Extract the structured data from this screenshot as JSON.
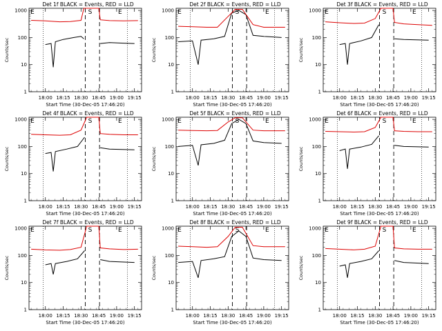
{
  "figure": {
    "ylabel": "Counts/sec",
    "xlabel": "Start Time (30-Dec-05 17:46:20)",
    "x_tick_labels": [
      "18:00",
      "18:15",
      "18:30",
      "18:45",
      "19:00",
      "19:15"
    ],
    "y_tick_labels": [
      "1",
      "10",
      "100",
      "1000"
    ],
    "marker_S": "S",
    "marker_E": "E",
    "colors": {
      "events": "#000000",
      "lld": "#dd0000",
      "axes": "#000000",
      "background": "#ffffff"
    }
  },
  "chart_data": [
    {
      "type": "line",
      "title": "Det 1f BLACK = Events, RED = LLD",
      "xlabel": "Start Time (30-Dec-05 17:46:20)",
      "ylabel": "Counts/sec",
      "y_scale": "log",
      "ylim": [
        1,
        1200
      ],
      "x_ticks": [
        "18:00",
        "18:15",
        "18:30",
        "18:45",
        "19:00",
        "19:15"
      ],
      "series": [
        {
          "name": "Events",
          "color": "#000000",
          "points": [
            [
              18.0,
              55
            ],
            [
              18.08,
              60
            ],
            [
              18.11,
              8
            ],
            [
              18.14,
              70
            ],
            [
              18.25,
              85
            ],
            [
              18.4,
              100
            ],
            [
              18.5,
              110
            ],
            [
              18.54,
              90
            ],
            [
              18.56,
              null
            ],
            [
              18.75,
              null
            ],
            [
              18.77,
              60
            ],
            [
              18.9,
              65
            ],
            [
              19.1,
              62
            ],
            [
              19.25,
              60
            ]
          ]
        },
        {
          "name": "LLD",
          "color": "#dd0000",
          "points": [
            [
              17.8,
              430
            ],
            [
              18.0,
              410
            ],
            [
              18.2,
              380
            ],
            [
              18.35,
              390
            ],
            [
              18.5,
              430
            ],
            [
              18.54,
              1200
            ],
            [
              18.75,
              1200
            ],
            [
              18.77,
              450
            ],
            [
              18.9,
              420
            ],
            [
              19.1,
              410
            ],
            [
              19.3,
              420
            ]
          ]
        }
      ]
    },
    {
      "type": "line",
      "title": "Det 2f BLACK = Events, RED = LLD",
      "xlabel": "Start Time (30-Dec-05 17:46:20)",
      "ylabel": "Counts/sec",
      "y_scale": "log",
      "ylim": [
        1,
        1200
      ],
      "x_ticks": [
        "18:00",
        "18:15",
        "18:30",
        "18:45",
        "19:00",
        "19:15"
      ],
      "series": [
        {
          "name": "Events",
          "color": "#000000",
          "points": [
            [
              17.8,
              70
            ],
            [
              18.0,
              75
            ],
            [
              18.08,
              10
            ],
            [
              18.12,
              80
            ],
            [
              18.3,
              90
            ],
            [
              18.45,
              110
            ],
            [
              18.55,
              800
            ],
            [
              18.65,
              1000
            ],
            [
              18.75,
              700
            ],
            [
              18.85,
              120
            ],
            [
              19.0,
              110
            ],
            [
              19.25,
              100
            ]
          ]
        },
        {
          "name": "LLD",
          "color": "#dd0000",
          "points": [
            [
              17.8,
              260
            ],
            [
              18.0,
              250
            ],
            [
              18.2,
              240
            ],
            [
              18.35,
              240
            ],
            [
              18.5,
              600
            ],
            [
              18.6,
              1100
            ],
            [
              18.7,
              1100
            ],
            [
              18.85,
              300
            ],
            [
              19.0,
              240
            ],
            [
              19.3,
              240
            ]
          ]
        }
      ]
    },
    {
      "type": "line",
      "title": "Det 3f BLACK = Events, RED = LLD",
      "xlabel": "Start Time (30-Dec-05 17:46:20)",
      "ylabel": "Counts/sec",
      "y_scale": "log",
      "ylim": [
        1,
        1200
      ],
      "x_ticks": [
        "18:00",
        "18:15",
        "18:30",
        "18:45",
        "19:00",
        "19:15"
      ],
      "series": [
        {
          "name": "Events",
          "color": "#000000",
          "points": [
            [
              18.0,
              55
            ],
            [
              18.08,
              60
            ],
            [
              18.11,
              10
            ],
            [
              18.14,
              60
            ],
            [
              18.3,
              75
            ],
            [
              18.45,
              100
            ],
            [
              18.55,
              300
            ],
            [
              18.58,
              null
            ],
            [
              18.75,
              null
            ],
            [
              18.77,
              90
            ],
            [
              18.9,
              85
            ],
            [
              19.25,
              80
            ]
          ]
        },
        {
          "name": "LLD",
          "color": "#dd0000",
          "points": [
            [
              17.8,
              380
            ],
            [
              18.0,
              350
            ],
            [
              18.2,
              330
            ],
            [
              18.35,
              340
            ],
            [
              18.5,
              500
            ],
            [
              18.58,
              1200
            ],
            [
              18.75,
              1200
            ],
            [
              18.77,
              360
            ],
            [
              18.9,
              320
            ],
            [
              19.1,
              300
            ],
            [
              19.3,
              280
            ]
          ]
        }
      ]
    },
    {
      "type": "line",
      "title": "Det 4f BLACK = Events, RED = LLD",
      "xlabel": "Start Time (30-Dec-05 17:46:20)",
      "ylabel": "Counts/sec",
      "y_scale": "log",
      "ylim": [
        1,
        1200
      ],
      "x_ticks": [
        "18:00",
        "18:15",
        "18:30",
        "18:45",
        "19:00",
        "19:15"
      ],
      "series": [
        {
          "name": "Events",
          "color": "#000000",
          "points": [
            [
              18.0,
              55
            ],
            [
              18.08,
              60
            ],
            [
              18.11,
              12
            ],
            [
              18.14,
              65
            ],
            [
              18.3,
              80
            ],
            [
              18.45,
              100
            ],
            [
              18.55,
              220
            ],
            [
              18.58,
              null
            ],
            [
              18.75,
              null
            ],
            [
              18.77,
              90
            ],
            [
              18.9,
              80
            ],
            [
              19.25,
              75
            ]
          ]
        },
        {
          "name": "LLD",
          "color": "#dd0000",
          "points": [
            [
              17.8,
              280
            ],
            [
              18.0,
              270
            ],
            [
              18.2,
              260
            ],
            [
              18.35,
              270
            ],
            [
              18.5,
              400
            ],
            [
              18.58,
              1200
            ],
            [
              18.75,
              1200
            ],
            [
              18.77,
              300
            ],
            [
              18.9,
              280
            ],
            [
              19.1,
              270
            ],
            [
              19.3,
              270
            ]
          ]
        }
      ]
    },
    {
      "type": "line",
      "title": "Det 5f BLACK = Events, RED = LLD",
      "xlabel": "Start Time (30-Dec-05 17:46:20)",
      "ylabel": "Counts/sec",
      "y_scale": "log",
      "ylim": [
        1,
        1200
      ],
      "x_ticks": [
        "18:00",
        "18:15",
        "18:30",
        "18:45",
        "19:00",
        "19:15"
      ],
      "series": [
        {
          "name": "Events",
          "color": "#000000",
          "points": [
            [
              17.8,
              100
            ],
            [
              18.0,
              110
            ],
            [
              18.08,
              20
            ],
            [
              18.12,
              115
            ],
            [
              18.3,
              130
            ],
            [
              18.45,
              170
            ],
            [
              18.55,
              700
            ],
            [
              18.65,
              1000
            ],
            [
              18.75,
              700
            ],
            [
              18.85,
              160
            ],
            [
              19.0,
              140
            ],
            [
              19.25,
              130
            ]
          ]
        },
        {
          "name": "LLD",
          "color": "#dd0000",
          "points": [
            [
              17.8,
              400
            ],
            [
              18.0,
              390
            ],
            [
              18.2,
              380
            ],
            [
              18.35,
              390
            ],
            [
              18.5,
              800
            ],
            [
              18.6,
              1150
            ],
            [
              18.7,
              1150
            ],
            [
              18.85,
              400
            ],
            [
              19.0,
              380
            ],
            [
              19.3,
              380
            ]
          ]
        }
      ]
    },
    {
      "type": "line",
      "title": "Det 6f BLACK = Events, RED = LLD",
      "xlabel": "Start Time (30-Dec-05 17:46:20)",
      "ylabel": "Counts/sec",
      "y_scale": "log",
      "ylim": [
        1,
        1200
      ],
      "x_ticks": [
        "18:00",
        "18:15",
        "18:30",
        "18:45",
        "19:00",
        "19:15"
      ],
      "series": [
        {
          "name": "Events",
          "color": "#000000",
          "points": [
            [
              18.0,
              70
            ],
            [
              18.08,
              80
            ],
            [
              18.11,
              15
            ],
            [
              18.14,
              80
            ],
            [
              18.3,
              95
            ],
            [
              18.45,
              120
            ],
            [
              18.55,
              250
            ],
            [
              18.58,
              null
            ],
            [
              18.75,
              null
            ],
            [
              18.77,
              110
            ],
            [
              18.9,
              100
            ],
            [
              19.25,
              95
            ]
          ]
        },
        {
          "name": "LLD",
          "color": "#dd0000",
          "points": [
            [
              17.8,
              360
            ],
            [
              18.0,
              350
            ],
            [
              18.2,
              340
            ],
            [
              18.35,
              350
            ],
            [
              18.5,
              500
            ],
            [
              18.58,
              1200
            ],
            [
              18.75,
              1200
            ],
            [
              18.77,
              380
            ],
            [
              18.9,
              360
            ],
            [
              19.1,
              350
            ],
            [
              19.3,
              350
            ]
          ]
        }
      ]
    },
    {
      "type": "line",
      "title": "Det 7f BLACK = Events, RED = LLD",
      "xlabel": "Start Time (30-Dec-05 17:46:20)",
      "ylabel": "Counts/sec",
      "y_scale": "log",
      "ylim": [
        1,
        1200
      ],
      "x_ticks": [
        "18:00",
        "18:15",
        "18:30",
        "18:45",
        "19:00",
        "19:15"
      ],
      "series": [
        {
          "name": "Events",
          "color": "#000000",
          "points": [
            [
              18.0,
              45
            ],
            [
              18.08,
              50
            ],
            [
              18.11,
              20
            ],
            [
              18.14,
              50
            ],
            [
              18.3,
              60
            ],
            [
              18.45,
              75
            ],
            [
              18.55,
              150
            ],
            [
              18.58,
              null
            ],
            [
              18.75,
              null
            ],
            [
              18.77,
              70
            ],
            [
              18.9,
              60
            ],
            [
              19.25,
              55
            ]
          ]
        },
        {
          "name": "LLD",
          "color": "#dd0000",
          "points": [
            [
              17.8,
              170
            ],
            [
              18.0,
              160
            ],
            [
              18.2,
              155
            ],
            [
              18.35,
              165
            ],
            [
              18.5,
              200
            ],
            [
              18.58,
              1200
            ],
            [
              18.75,
              1200
            ],
            [
              18.77,
              190
            ],
            [
              18.9,
              175
            ],
            [
              19.1,
              165
            ],
            [
              19.3,
              170
            ]
          ]
        }
      ]
    },
    {
      "type": "line",
      "title": "Det 8f BLACK = Events, RED = LLD",
      "xlabel": "Start Time (30-Dec-05 17:46:20)",
      "ylabel": "Counts/sec",
      "y_scale": "log",
      "ylim": [
        1,
        1200
      ],
      "x_ticks": [
        "18:00",
        "18:15",
        "18:30",
        "18:45",
        "19:00",
        "19:15"
      ],
      "series": [
        {
          "name": "Events",
          "color": "#000000",
          "points": [
            [
              17.8,
              55
            ],
            [
              18.0,
              60
            ],
            [
              18.08,
              15
            ],
            [
              18.12,
              65
            ],
            [
              18.3,
              75
            ],
            [
              18.45,
              90
            ],
            [
              18.55,
              500
            ],
            [
              18.65,
              800
            ],
            [
              18.75,
              500
            ],
            [
              18.85,
              80
            ],
            [
              19.0,
              70
            ],
            [
              19.25,
              65
            ]
          ]
        },
        {
          "name": "LLD",
          "color": "#dd0000",
          "points": [
            [
              17.8,
              220
            ],
            [
              18.0,
              210
            ],
            [
              18.2,
              200
            ],
            [
              18.35,
              210
            ],
            [
              18.5,
              500
            ],
            [
              18.6,
              1100
            ],
            [
              18.7,
              1100
            ],
            [
              18.85,
              230
            ],
            [
              19.0,
              210
            ],
            [
              19.3,
              210
            ]
          ]
        }
      ]
    },
    {
      "type": "line",
      "title": "Det 9f BLACK = Events, RED = LLD",
      "xlabel": "Start Time (30-Dec-05 17:46:20)",
      "ylabel": "Counts/sec",
      "y_scale": "log",
      "ylim": [
        1,
        1200
      ],
      "x_ticks": [
        "18:00",
        "18:15",
        "18:30",
        "18:45",
        "19:00",
        "19:15"
      ],
      "series": [
        {
          "name": "Events",
          "color": "#000000",
          "points": [
            [
              18.0,
              40
            ],
            [
              18.08,
              45
            ],
            [
              18.11,
              15
            ],
            [
              18.14,
              50
            ],
            [
              18.3,
              60
            ],
            [
              18.45,
              75
            ],
            [
              18.55,
              150
            ],
            [
              18.58,
              null
            ],
            [
              18.75,
              null
            ],
            [
              18.77,
              65
            ],
            [
              18.9,
              55
            ],
            [
              19.25,
              50
            ]
          ]
        },
        {
          "name": "LLD",
          "color": "#dd0000",
          "points": [
            [
              17.8,
              180
            ],
            [
              18.0,
              170
            ],
            [
              18.2,
              160
            ],
            [
              18.35,
              170
            ],
            [
              18.5,
              220
            ],
            [
              18.58,
              1200
            ],
            [
              18.75,
              1200
            ],
            [
              18.77,
              190
            ],
            [
              18.9,
              175
            ],
            [
              19.1,
              170
            ],
            [
              19.3,
              170
            ]
          ]
        }
      ]
    }
  ]
}
